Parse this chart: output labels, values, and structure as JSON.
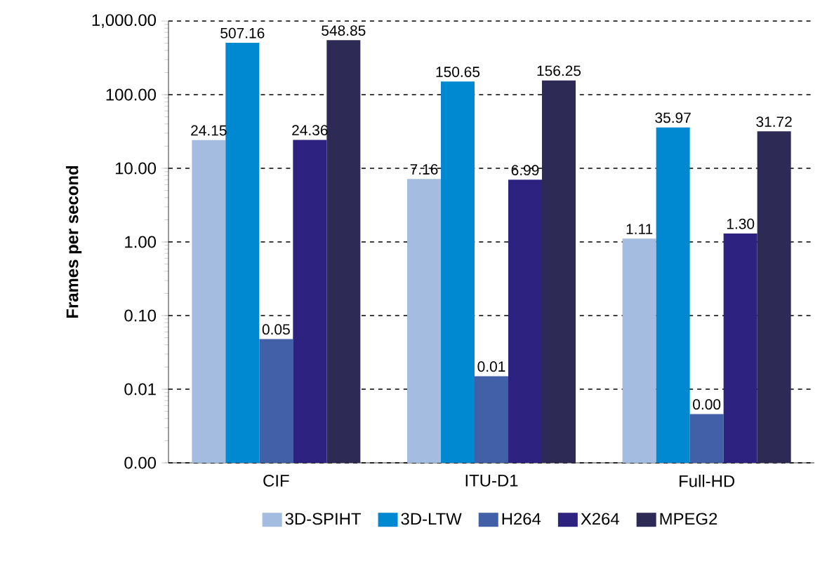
{
  "chart_data": {
    "type": "bar",
    "ylabel": "Frames per second",
    "categories": [
      "CIF",
      "ITU-D1",
      "Full-HD"
    ],
    "log": true,
    "grid": "y",
    "legend": "bottom",
    "ylim": [
      0.001,
      1000
    ],
    "yticks": [
      {
        "value": 0.001,
        "label": "0.00"
      },
      {
        "value": 0.01,
        "label": "0.01"
      },
      {
        "value": 0.1,
        "label": "0.10"
      },
      {
        "value": 1,
        "label": "1.00"
      },
      {
        "value": 10,
        "label": "10.00"
      },
      {
        "value": 100,
        "label": "100.00"
      },
      {
        "value": 1000,
        "label": "1,000.00"
      }
    ],
    "series": [
      {
        "name": "3D-SPIHT",
        "color": "#a4bce0",
        "values": [
          24.15,
          7.16,
          1.11
        ],
        "value_labels": [
          "24.15",
          "7.16",
          "1.11"
        ]
      },
      {
        "name": "3D-LTW",
        "color": "#0088d0",
        "values": [
          507.16,
          150.65,
          35.97
        ],
        "value_labels": [
          "507.16",
          "150.65",
          "35.97"
        ]
      },
      {
        "name": "H264",
        "color": "#4260a8",
        "values": [
          0.048,
          0.015,
          0.0046
        ],
        "value_labels": [
          "0.05",
          "0.01",
          "0.00"
        ]
      },
      {
        "name": "X264",
        "color": "#2e2280",
        "values": [
          24.36,
          6.99,
          1.3
        ],
        "value_labels": [
          "24.36",
          "6.99",
          "1.30"
        ]
      },
      {
        "name": "MPEG2",
        "color": "#2e2a56",
        "values": [
          548.85,
          156.25,
          31.72
        ],
        "value_labels": [
          "548.85",
          "156.25",
          "31.72"
        ]
      }
    ]
  }
}
